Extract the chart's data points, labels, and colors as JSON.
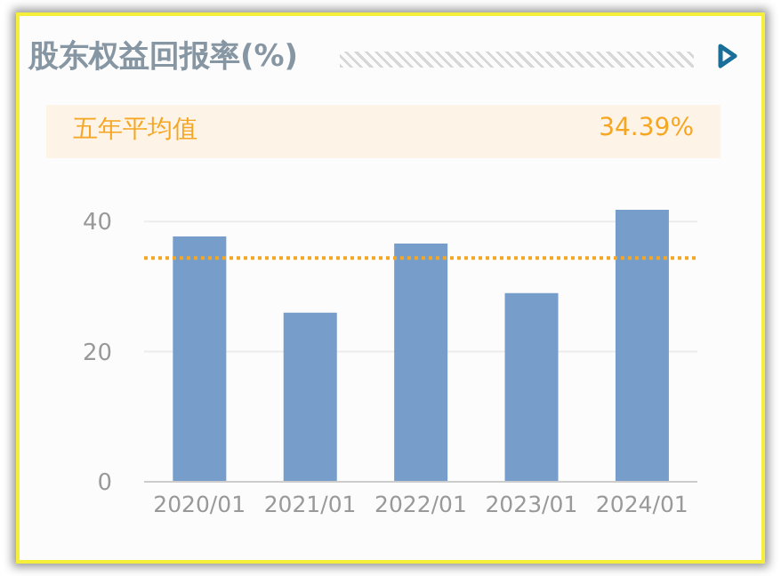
{
  "chart_data": {
    "type": "bar",
    "title": "股东权益回报率(%)",
    "categories": [
      "2020/01",
      "2021/01",
      "2022/01",
      "2023/01",
      "2024/01"
    ],
    "values": [
      37.7,
      26.0,
      36.6,
      29.0,
      41.8
    ],
    "color": "#779ecb",
    "ylim": [
      0,
      41.8
    ],
    "yticks": [
      0,
      20,
      40
    ],
    "grid": "y",
    "ref_lines": [
      {
        "axis": "y",
        "value": 34.39,
        "color": "#f5a623",
        "line_style": "dotted"
      }
    ],
    "annotations": [
      "五年平均值",
      "34.39%"
    ]
  }
}
